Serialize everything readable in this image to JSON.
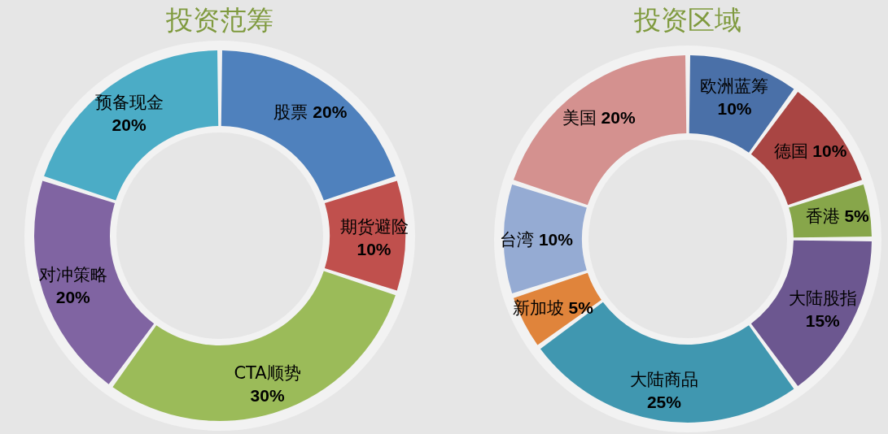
{
  "chart_data": [
    {
      "type": "donut",
      "title": "投资范筹",
      "categories": [
        "股票",
        "期货避险",
        "CTA顺势",
        "对冲策略",
        "预备现金"
      ],
      "values": [
        20,
        10,
        30,
        20,
        20
      ],
      "colors": [
        "#4f81bd",
        "#c0504d",
        "#9bbb59",
        "#8064a2",
        "#4bacc6"
      ],
      "value_labels": [
        "20%",
        "10%",
        "30%",
        "20%",
        "20%"
      ]
    },
    {
      "type": "donut",
      "title": "投资区域",
      "categories": [
        "欧洲蓝筹",
        "德国",
        "香港",
        "大陆股指",
        "大陆商品",
        "新加坡",
        "台湾",
        "美国"
      ],
      "values": [
        10,
        10,
        5,
        15,
        25,
        5,
        10,
        20
      ],
      "colors": [
        "#4a70a8",
        "#a94543",
        "#87a64a",
        "#6c5790",
        "#4097b0",
        "#e0843b",
        "#95abd3",
        "#d4918f"
      ],
      "value_labels": [
        "10%",
        "10%",
        "5%",
        "15%",
        "25%",
        "5%",
        "10%",
        "20%"
      ]
    }
  ]
}
